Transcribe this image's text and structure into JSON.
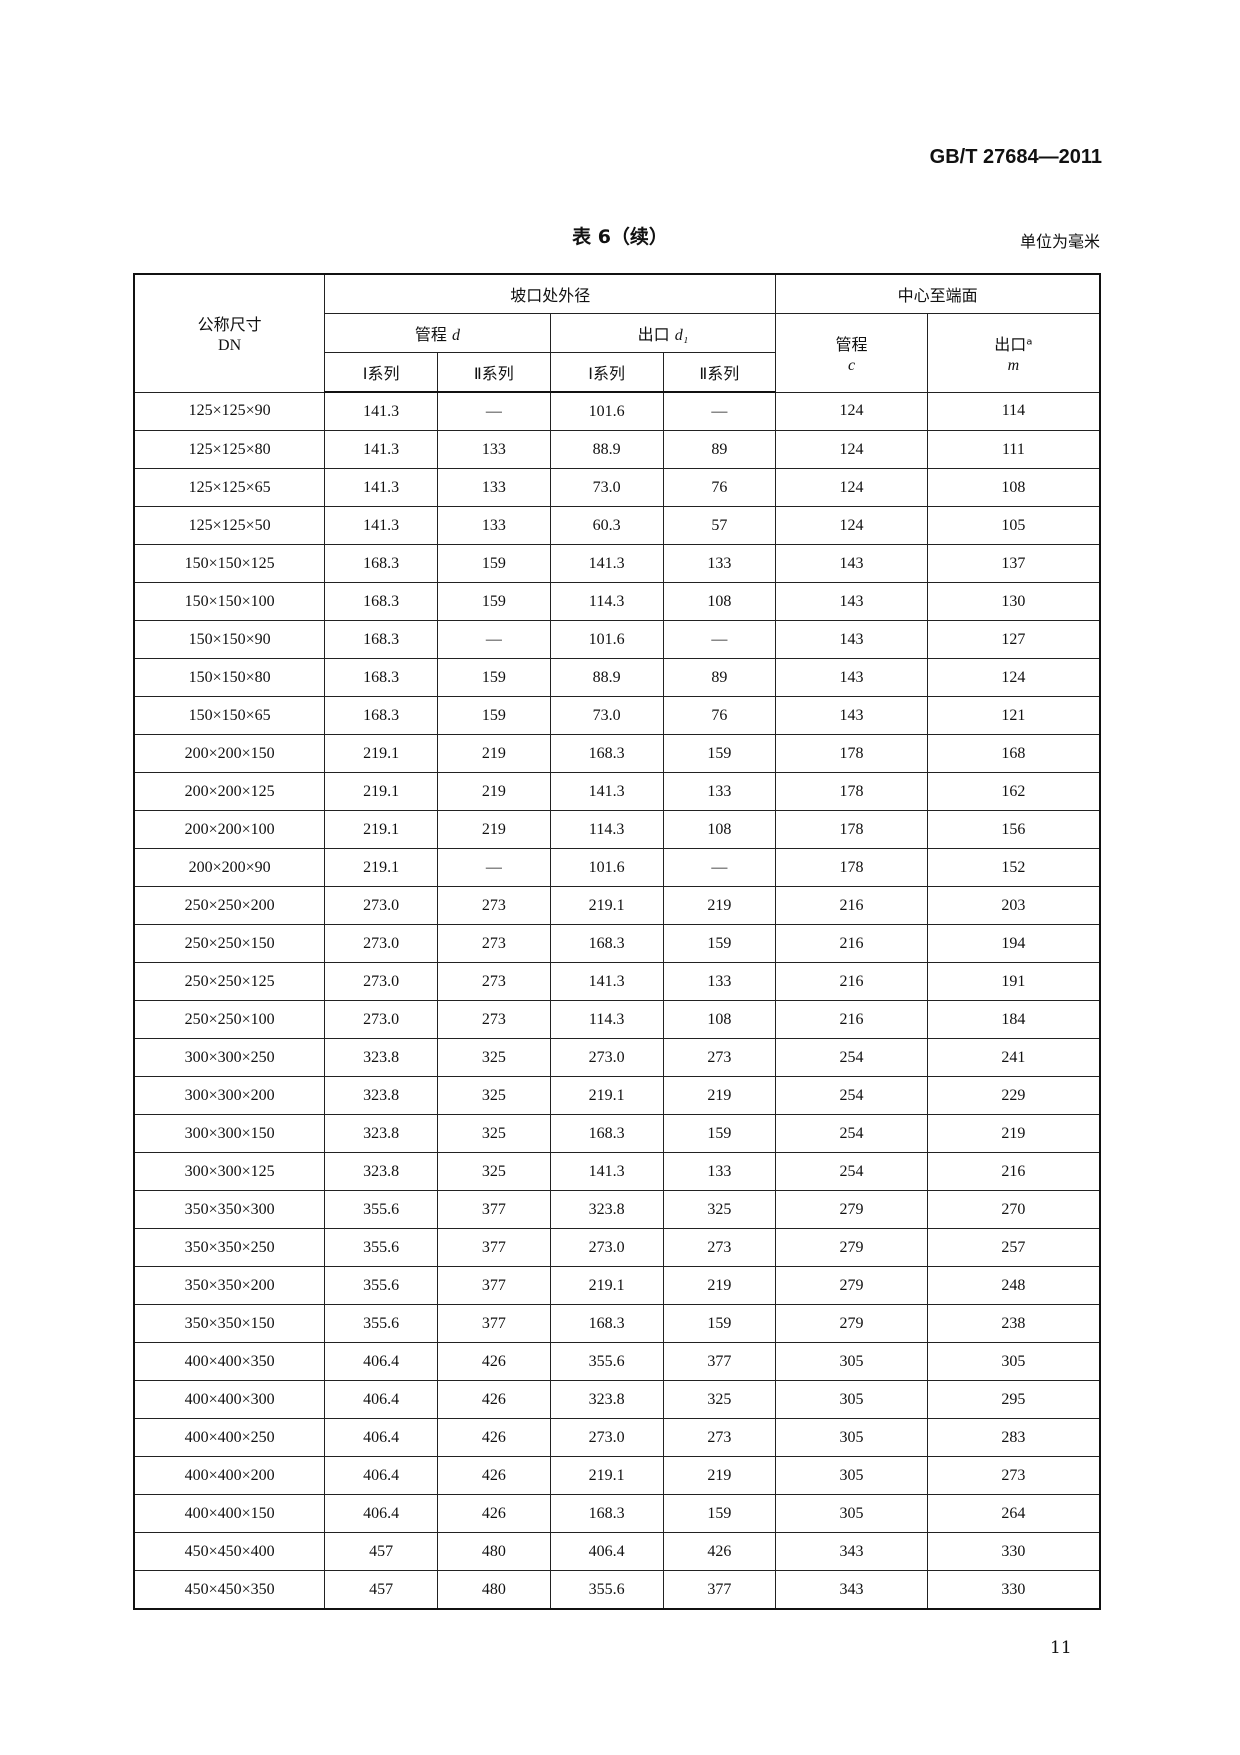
{
  "header": {
    "standard": "GB/T 27684—2011"
  },
  "table_title": "表 6（续）",
  "unit_note": "单位为毫米",
  "columns": {
    "nominal": "公称尺寸",
    "dn": "DN",
    "bevel_od": "坡口处外径",
    "center_to_end": "中心至端面",
    "run_d": "管程",
    "run_d_sym": "d",
    "outlet_d1": "出口",
    "outlet_d1_sym": "d₁",
    "run_c": "管程",
    "run_c_sym": "c",
    "outlet_m": "出口ᵃ",
    "outlet_m_sym": "m",
    "series1": "Ⅰ系列",
    "series2": "Ⅱ系列"
  },
  "rows": [
    [
      "125×125×90",
      "141.3",
      "—",
      "101.6",
      "—",
      "124",
      "114"
    ],
    [
      "125×125×80",
      "141.3",
      "133",
      "88.9",
      "89",
      "124",
      "111"
    ],
    [
      "125×125×65",
      "141.3",
      "133",
      "73.0",
      "76",
      "124",
      "108"
    ],
    [
      "125×125×50",
      "141.3",
      "133",
      "60.3",
      "57",
      "124",
      "105"
    ],
    [
      "150×150×125",
      "168.3",
      "159",
      "141.3",
      "133",
      "143",
      "137"
    ],
    [
      "150×150×100",
      "168.3",
      "159",
      "114.3",
      "108",
      "143",
      "130"
    ],
    [
      "150×150×90",
      "168.3",
      "—",
      "101.6",
      "—",
      "143",
      "127"
    ],
    [
      "150×150×80",
      "168.3",
      "159",
      "88.9",
      "89",
      "143",
      "124"
    ],
    [
      "150×150×65",
      "168.3",
      "159",
      "73.0",
      "76",
      "143",
      "121"
    ],
    [
      "200×200×150",
      "219.1",
      "219",
      "168.3",
      "159",
      "178",
      "168"
    ],
    [
      "200×200×125",
      "219.1",
      "219",
      "141.3",
      "133",
      "178",
      "162"
    ],
    [
      "200×200×100",
      "219.1",
      "219",
      "114.3",
      "108",
      "178",
      "156"
    ],
    [
      "200×200×90",
      "219.1",
      "—",
      "101.6",
      "—",
      "178",
      "152"
    ],
    [
      "250×250×200",
      "273.0",
      "273",
      "219.1",
      "219",
      "216",
      "203"
    ],
    [
      "250×250×150",
      "273.0",
      "273",
      "168.3",
      "159",
      "216",
      "194"
    ],
    [
      "250×250×125",
      "273.0",
      "273",
      "141.3",
      "133",
      "216",
      "191"
    ],
    [
      "250×250×100",
      "273.0",
      "273",
      "114.3",
      "108",
      "216",
      "184"
    ],
    [
      "300×300×250",
      "323.8",
      "325",
      "273.0",
      "273",
      "254",
      "241"
    ],
    [
      "300×300×200",
      "323.8",
      "325",
      "219.1",
      "219",
      "254",
      "229"
    ],
    [
      "300×300×150",
      "323.8",
      "325",
      "168.3",
      "159",
      "254",
      "219"
    ],
    [
      "300×300×125",
      "323.8",
      "325",
      "141.3",
      "133",
      "254",
      "216"
    ],
    [
      "350×350×300",
      "355.6",
      "377",
      "323.8",
      "325",
      "279",
      "270"
    ],
    [
      "350×350×250",
      "355.6",
      "377",
      "273.0",
      "273",
      "279",
      "257"
    ],
    [
      "350×350×200",
      "355.6",
      "377",
      "219.1",
      "219",
      "279",
      "248"
    ],
    [
      "350×350×150",
      "355.6",
      "377",
      "168.3",
      "159",
      "279",
      "238"
    ],
    [
      "400×400×350",
      "406.4",
      "426",
      "355.6",
      "377",
      "305",
      "305"
    ],
    [
      "400×400×300",
      "406.4",
      "426",
      "323.8",
      "325",
      "305",
      "295"
    ],
    [
      "400×400×250",
      "406.4",
      "426",
      "273.0",
      "273",
      "305",
      "283"
    ],
    [
      "400×400×200",
      "406.4",
      "426",
      "219.1",
      "219",
      "305",
      "273"
    ],
    [
      "400×400×150",
      "406.4",
      "426",
      "168.3",
      "159",
      "305",
      "264"
    ],
    [
      "450×450×400",
      "457",
      "480",
      "406.4",
      "426",
      "343",
      "330"
    ],
    [
      "450×450×350",
      "457",
      "480",
      "355.6",
      "377",
      "343",
      "330"
    ]
  ],
  "page_number": "11"
}
